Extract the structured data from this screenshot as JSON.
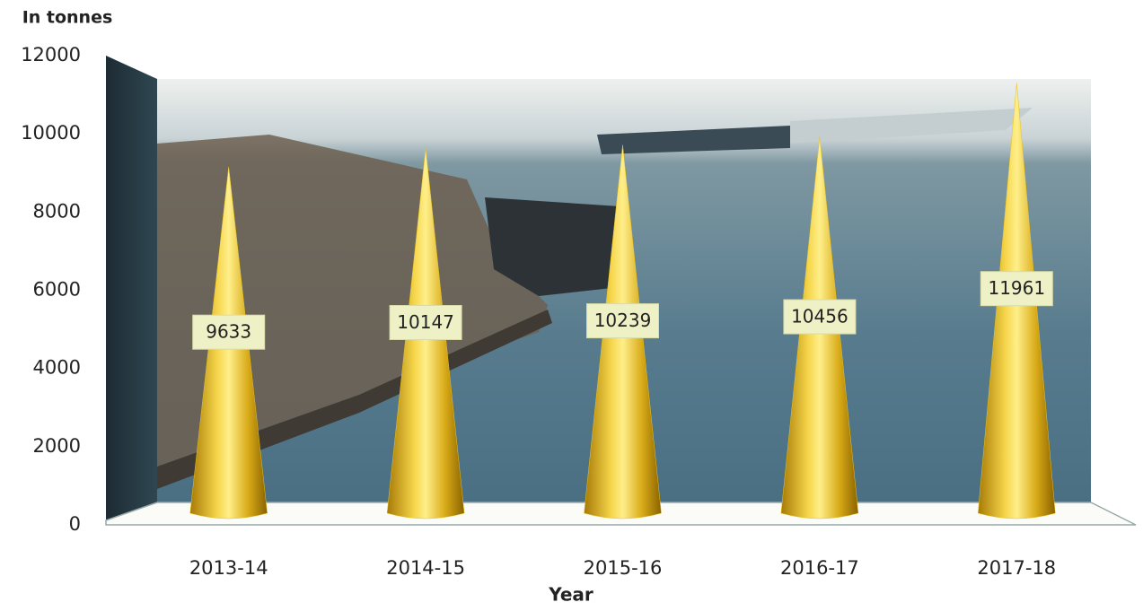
{
  "chart_data": {
    "type": "cone",
    "y_label": "In tonnes",
    "x_label": "Year",
    "categories": [
      "2013-14",
      "2014-15",
      "2015-16",
      "2016-17",
      "2017-18"
    ],
    "values": [
      9633,
      10147,
      10239,
      10456,
      11961
    ],
    "color": "#e8c21c",
    "ylim": [
      0,
      12000
    ],
    "yticks": [
      0,
      2000,
      4000,
      6000,
      8000,
      10000,
      12000
    ]
  }
}
